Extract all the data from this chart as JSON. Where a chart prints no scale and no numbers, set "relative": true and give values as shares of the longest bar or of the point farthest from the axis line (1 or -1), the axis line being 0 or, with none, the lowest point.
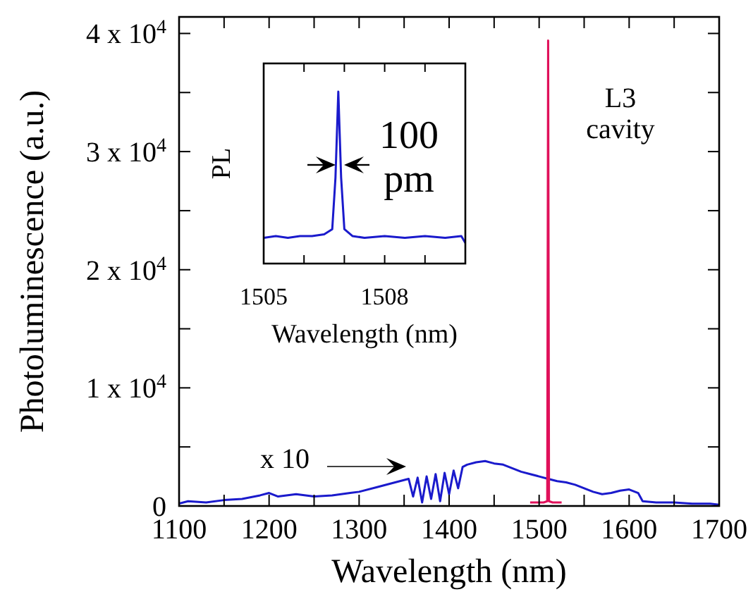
{
  "chart_data": [
    {
      "type": "line",
      "xlabel": "Wavelength (nm)",
      "ylabel": "Photoluminescence (a.u.)",
      "xlim": [
        1100,
        1700
      ],
      "ylim": [
        0,
        41400
      ],
      "xticks": [
        1100,
        {
          "value": 1150,
          "label": null
        },
        1200,
        {
          "value": 1250,
          "label": null
        },
        1300,
        {
          "value": 1350,
          "label": null
        },
        1400,
        {
          "value": 1450,
          "label": null
        },
        1500,
        {
          "value": 1550,
          "label": null
        },
        1600,
        {
          "value": 1650,
          "label": null
        },
        1700
      ],
      "yticks": [
        0,
        {
          "value": 5000,
          "label": null
        },
        {
          "value": 10000,
          "label": "1 x 10$^{4}$"
        },
        {
          "value": 15000,
          "label": null
        },
        {
          "value": 20000,
          "label": "2 x 10$^{4}$"
        },
        {
          "value": 25000,
          "label": null
        },
        {
          "value": 30000,
          "label": "3 x 10$^{4}$"
        },
        {
          "value": 35000,
          "label": null
        },
        {
          "value": 40000,
          "label": "4 x 10$^{4}$"
        }
      ],
      "grid": false,
      "annotations": [
        "x 10",
        "L3\ncavity"
      ],
      "series": [
        {
          "color": "#1a1acc",
          "x": [
            1100,
            1110,
            1130,
            1150,
            1170,
            1190,
            1200,
            1210,
            1230,
            1250,
            1270,
            1290,
            1300,
            1320,
            1340,
            1355,
            1360,
            1365,
            1370,
            1375,
            1380,
            1385,
            1390,
            1395,
            1400,
            1405,
            1410,
            1415,
            1420,
            1430,
            1440,
            1450,
            1460,
            1470,
            1480,
            1490,
            1500,
            1510,
            1520,
            1530,
            1540,
            1550,
            1560,
            1570,
            1580,
            1590,
            1600,
            1610,
            1615,
            1630,
            1650,
            1670,
            1690,
            1700
          ],
          "values": [
            200,
            400,
            300,
            500,
            600,
            900,
            1100,
            800,
            1000,
            800,
            900,
            1100,
            1200,
            1600,
            2000,
            2300,
            800,
            2400,
            300,
            2500,
            600,
            2700,
            400,
            2800,
            1000,
            3000,
            1500,
            3300,
            3500,
            3700,
            3800,
            3600,
            3500,
            3200,
            2900,
            2700,
            2500,
            2300,
            2100,
            2000,
            1800,
            1500,
            1200,
            1000,
            1100,
            1300,
            1400,
            1100,
            400,
            300,
            300,
            200,
            200,
            100
          ]
        },
        {
          "color": "#e0105a",
          "x": [
            1490,
            1505,
            1509,
            1510,
            1511,
            1515,
            1525
          ],
          "values": [
            300,
            300,
            400,
            39400,
            400,
            300,
            300
          ]
        }
      ]
    },
    {
      "type": "line",
      "xlabel": "Wavelength (nm)",
      "ylabel": "PL",
      "xlim": [
        1505,
        1510
      ],
      "relative": true,
      "tick_labels": "x",
      "xticks": [
        1505,
        {
          "value": 1506,
          "label": null
        },
        {
          "value": 1507,
          "label": null
        },
        1508,
        {
          "value": 1509,
          "label": null
        }
      ],
      "annotations": [
        "100\npm"
      ],
      "series": [
        {
          "color": "#1a1acc",
          "x": [
            1505,
            1505.3,
            1505.6,
            1505.9,
            1506.2,
            1506.5,
            1506.7,
            1506.78,
            1506.85,
            1506.92,
            1507,
            1507.2,
            1507.5,
            1508,
            1508.5,
            1509,
            1509.5,
            1509.9,
            1510
          ],
          "values": [
            0.15,
            0.16,
            0.15,
            0.16,
            0.16,
            0.17,
            0.2,
            0.5,
            1,
            0.5,
            0.2,
            0.16,
            0.15,
            0.16,
            0.15,
            0.16,
            0.15,
            0.16,
            0.12
          ]
        }
      ]
    }
  ]
}
